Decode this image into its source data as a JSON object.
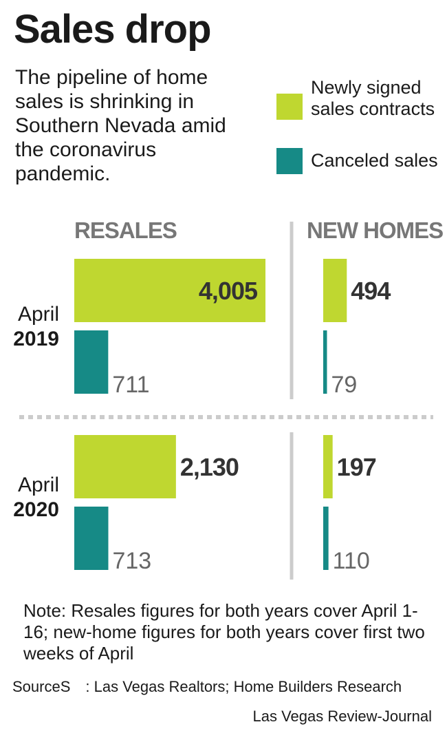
{
  "title": "Sales drop",
  "subtitle": "The pipeline of home sales is shrinking in Southern Nevada amid the coronavirus pandemic.",
  "legend": [
    {
      "label": "Newly signed sales contracts",
      "color": "#bfd730"
    },
    {
      "label": "Canceled sales",
      "color": "#168a86"
    }
  ],
  "columns": [
    "RESALES",
    "NEW HOMES"
  ],
  "rows": [
    {
      "month": "April",
      "year": "2019"
    },
    {
      "month": "April",
      "year": "2020"
    }
  ],
  "chart_data": {
    "type": "bar",
    "orientation": "horizontal",
    "panels": [
      {
        "name": "RESALES",
        "series": [
          {
            "name": "Newly signed sales contracts",
            "values": [
              4005,
              2130
            ],
            "labels": [
              "4,005",
              "2,130"
            ]
          },
          {
            "name": "Canceled sales",
            "values": [
              711,
              713
            ],
            "labels": [
              "711",
              "713"
            ]
          }
        ]
      },
      {
        "name": "NEW HOMES",
        "series": [
          {
            "name": "Newly signed sales contracts",
            "values": [
              494,
              197
            ],
            "labels": [
              "494",
              "197"
            ]
          },
          {
            "name": "Canceled sales",
            "values": [
              79,
              110
            ],
            "labels": [
              "79",
              "110"
            ]
          }
        ]
      }
    ],
    "categories": [
      "April 2019",
      "April 2020"
    ],
    "colors": {
      "new": "#bfd730",
      "canceled": "#168a86",
      "divider": "#cccccc"
    }
  },
  "note": "Note: Resales figures for both years cover April 1-16; new-home figures for both years cover first two weeks of April",
  "source": "SourceS : Las Vegas Realtors; Home Builders Research",
  "credit": "Las Vegas Review-Journal"
}
